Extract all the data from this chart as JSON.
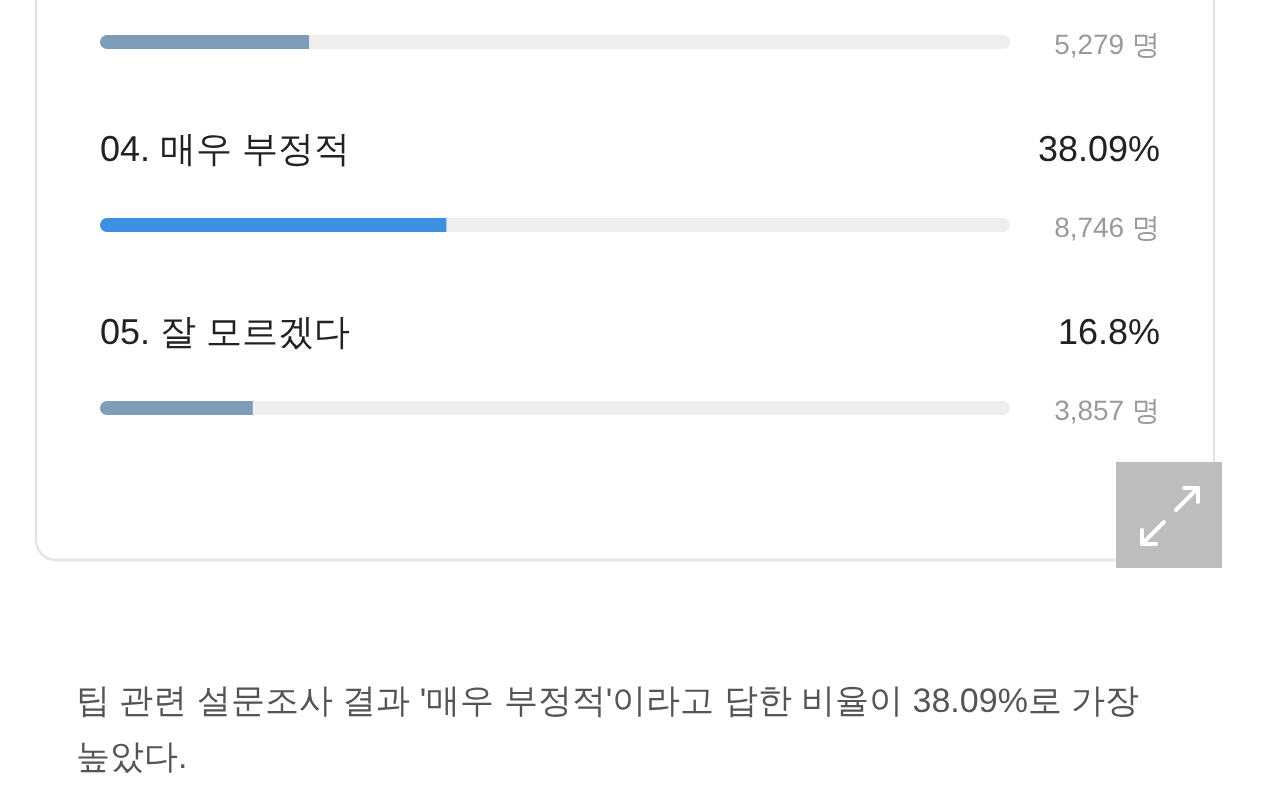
{
  "chart_data": {
    "type": "bar",
    "orientation": "horizontal",
    "stacked": true,
    "categories": [
      null,
      "04. 매우 부정적",
      "05. 잘 모르겠다"
    ],
    "series": [
      {
        "colors": [
          "#7d9cb8",
          "#3d8fe0",
          "#7d9cb8"
        ],
        "values": [
          23,
          38.09,
          16.8
        ],
        "value_labels": [
          null,
          "38.09%",
          "16.8%"
        ]
      },
      {
        "color": "#eeeeee",
        "values": [
          77,
          61.91,
          83.2
        ]
      }
    ],
    "xlim": [
      0,
      100
    ],
    "annotations": [
      "5,279 명",
      "8,746 명",
      "3,857 명",
      "팁 관련 설문조사 결과 '매우 부정적'이라고 답한 비율이 38.09%로 가장 높았다."
    ]
  }
}
